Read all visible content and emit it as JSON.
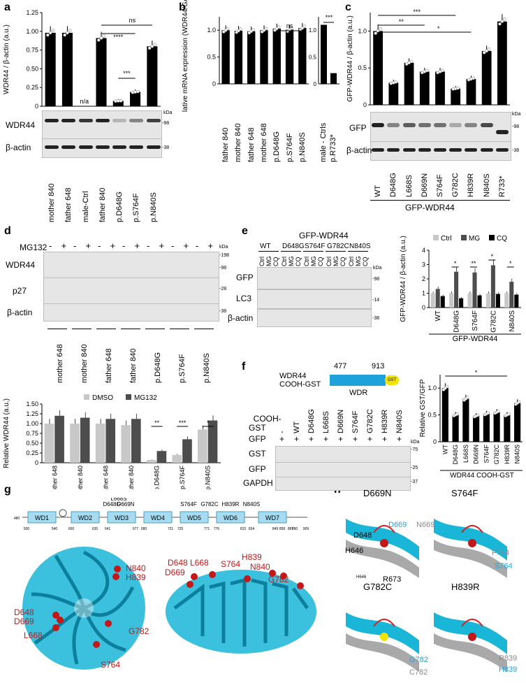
{
  "panel_labels": {
    "a": "a",
    "b": "b",
    "c": "c",
    "d": "d",
    "e": "e",
    "f": "f",
    "g": "g",
    "h": "h"
  },
  "chart_data": [
    {
      "panel": "a",
      "type": "bar",
      "ylabel": "WDR44 / β-actin (a.u.)",
      "ylim": [
        0,
        1.25
      ],
      "yticks": [
        "0",
        "0.25",
        "0.50",
        "0.75",
        "1.00",
        "1.25"
      ],
      "categories": [
        "mother 840",
        "father 648",
        "male-Ctrl",
        "father 840",
        "p.D648G",
        "p.S764F",
        "p.N840S"
      ],
      "values": [
        0.98,
        0.98,
        null,
        0.91,
        0.07,
        0.19,
        0.8
      ],
      "na_label": "n/a",
      "significance": [
        "ns",
        "****",
        "***"
      ]
    },
    {
      "panel": "b",
      "type": "bar",
      "ylabel": "Relative mRNA expression (WDR44/GAPDH)",
      "ylim": [
        0,
        1.25
      ],
      "yticks": [
        "0",
        "0.5",
        "1.0"
      ],
      "categories": [
        "father 840",
        "mother 840",
        "father 648",
        "mother 648",
        "p.D648G",
        "p.S764F",
        "p.N840S"
      ],
      "values": [
        1.0,
        0.99,
        0.98,
        1.0,
        1.03,
        1.01,
        1.04
      ],
      "significance": [
        "ns"
      ],
      "inset": {
        "categories": [
          "male - Ctrls",
          "p.R733*"
        ],
        "values": [
          1.1,
          0.2
        ],
        "ylim": [
          0,
          1.25
        ],
        "yticks": [
          "0",
          "0.5",
          "1.0"
        ],
        "significance": "***"
      }
    },
    {
      "panel": "c",
      "type": "bar",
      "ylabel": "GFP-WDR44 / β-actin (a.u.)",
      "ylim": [
        0,
        1.25
      ],
      "yticks": [
        "0",
        "0.5",
        "1.0"
      ],
      "categories": [
        "WT",
        "D648G",
        "L668S",
        "D669N",
        "S764F",
        "G782C",
        "H839R",
        "N840S",
        "R733*"
      ],
      "values": [
        1.0,
        0.3,
        0.57,
        0.45,
        0.45,
        0.22,
        0.35,
        0.73,
        1.13
      ],
      "significance": [
        "***",
        "**",
        "*"
      ],
      "group_label": "GFP-WDR44"
    },
    {
      "panel": "d",
      "type": "bar",
      "ylabel": "Relative WDR44 (a.u.)",
      "ylim": [
        0,
        1.5
      ],
      "yticks": [
        "0",
        "0.25",
        "0.50",
        "0.75",
        "1.00",
        "1.25",
        "1.50"
      ],
      "categories": [
        "mother 648",
        "mother 840",
        "father 648",
        "father 840",
        "p.D648G",
        "p.S764F",
        "p.N840S"
      ],
      "series": [
        {
          "name": "DMSO",
          "values": [
            1.0,
            1.0,
            1.0,
            0.96,
            0.07,
            0.2,
            0.85
          ],
          "color": "#c8c8c8"
        },
        {
          "name": "MG132",
          "values": [
            1.2,
            1.15,
            1.12,
            1.12,
            0.3,
            0.6,
            1.08
          ],
          "color": "#4d4d4d"
        }
      ],
      "significance": [
        "**",
        "***",
        "*"
      ],
      "legend": "top"
    },
    {
      "panel": "e",
      "type": "bar",
      "ylabel": "GFP-WDR44 / β-actin (a.u.)",
      "ylim": [
        0,
        4
      ],
      "yticks": [
        "0",
        "1",
        "2",
        "3",
        "4"
      ],
      "categories": [
        "WT",
        "D648G",
        "S764F",
        "G782C",
        "N840S"
      ],
      "series": [
        {
          "name": "Ctrl",
          "values": [
            1.0,
            1.0,
            1.0,
            1.0,
            1.0
          ],
          "color": "#c8c8c8"
        },
        {
          "name": "MG",
          "values": [
            1.3,
            2.5,
            2.45,
            2.95,
            1.8
          ],
          "color": "#4d4d4d"
        },
        {
          "name": "CQ",
          "values": [
            0.8,
            0.65,
            0.85,
            0.95,
            0.9
          ],
          "color": "#000000"
        }
      ],
      "significance": [
        "*",
        "**",
        "*",
        "*"
      ],
      "group_label": "GFP-WDR44"
    },
    {
      "panel": "f",
      "type": "bar",
      "ylabel": "Relative GST/GFP",
      "ylim": [
        0,
        1.25
      ],
      "yticks": [
        "0",
        "0.5",
        "1.0"
      ],
      "categories": [
        "WT",
        "D648G",
        "L668S",
        "D669N",
        "S764F",
        "G782C",
        "H839R",
        "N840S"
      ],
      "values": [
        1.0,
        0.5,
        0.8,
        0.48,
        0.52,
        0.55,
        0.5,
        0.72
      ],
      "significance": [
        "*"
      ],
      "group_label": "WDR44 COOH-GST"
    }
  ],
  "blot_a": {
    "rows": [
      "WDR44",
      "β-actin"
    ],
    "kda_label": "kDa",
    "markers": [
      "-98",
      "-38"
    ],
    "lanes": [
      "mother 840",
      "father 648",
      "male-Ctrl",
      "father 840",
      "p.D648G",
      "p.S764F",
      "p.N840S"
    ]
  },
  "blot_b_labels": {
    "lanes": [
      "father 840",
      "mother 840",
      "father 648",
      "mother 648",
      "p.D648G",
      "p.S764F",
      "p.N840S"
    ],
    "inset_lanes": [
      "male - Ctrls",
      "p.R733*"
    ]
  },
  "blot_c": {
    "rows": [
      "GFP",
      "β-actin"
    ],
    "kda_label": "kDa",
    "markers": [
      "-98",
      "-38"
    ],
    "lanes": [
      "WT",
      "D648G",
      "L668S",
      "D669N",
      "S764F",
      "G782C",
      "H839R",
      "N840S",
      "R733*"
    ],
    "group": "GFP-WDR44"
  },
  "blot_d": {
    "treatment_label": "MG132",
    "signs": [
      "-",
      "+",
      "-",
      "+",
      "-",
      "+",
      "-",
      "+",
      "-",
      "+",
      "-",
      "+",
      "-",
      "+"
    ],
    "rows": [
      "WDR44",
      "p27",
      "β-actin"
    ],
    "kda_label": "kDa",
    "markers": [
      "-198",
      "-98",
      "-28",
      "-38"
    ],
    "lanes": [
      "mother 648",
      "mother 840",
      "father 648",
      "father 840",
      "p.D648G",
      "p.S764F",
      "p.N840S"
    ]
  },
  "blot_e": {
    "title": "GFP-WDR44",
    "groups": [
      "WT",
      "D648G",
      "S764F",
      "G782C",
      "N840S"
    ],
    "conditions": [
      "Ctrl",
      "MG",
      "CQ"
    ],
    "rows": [
      "GFP",
      "LC3",
      "β-actin"
    ],
    "kda_label": "kDa",
    "markers": [
      "-98",
      "-14",
      "-38"
    ]
  },
  "blot_f": {
    "construct": {
      "name": "WDR44\nCOOH-GST",
      "start": "477",
      "end": "913",
      "domain": "WDR",
      "tag": "GST"
    },
    "row_labels": [
      "COOH-\nGST",
      "GFP"
    ],
    "lanes": [
      "-",
      "WT",
      "D648G",
      "L668S",
      "D669N",
      "S764F",
      "G782C",
      "H839R",
      "N840S"
    ],
    "gfp_signs": [
      "+",
      "+",
      "+",
      "+",
      "+",
      "+",
      "+",
      "+",
      "+"
    ],
    "rows": [
      "GST",
      "GFP",
      "GAPDH"
    ],
    "kda_label": "kDa",
    "markers": [
      "-75",
      "-25",
      "-37"
    ]
  },
  "panel_g": {
    "domains": [
      "WD1",
      "WD2",
      "WD3",
      "WD4",
      "WD5",
      "WD6",
      "WD7"
    ],
    "positions": [
      "480",
      "500",
      "540",
      "600",
      "635",
      "641",
      "677",
      "680",
      "721",
      "725",
      "771",
      "776",
      "815",
      "834",
      "849",
      "858",
      "887",
      "890",
      "909"
    ],
    "mutation_labels": [
      "L668S",
      "D648G",
      "D669N",
      "S764F",
      "G782C",
      "H839R",
      "N840S"
    ],
    "left_labels": [
      "N840",
      "H839",
      "D648",
      "D669",
      "G782",
      "L668",
      "S764"
    ],
    "right_labels": [
      "D648",
      "L668",
      "D669",
      "S764",
      "H839",
      "N840",
      "G782"
    ]
  },
  "panel_h": {
    "sub": [
      {
        "title": "D669N",
        "labels": [
          "D669",
          "N669",
          "D648",
          "H646",
          "H646",
          "R673"
        ]
      },
      {
        "title": "S764F",
        "labels": [
          "F764",
          "S764"
        ]
      },
      {
        "title": "G782C",
        "labels": [
          "G782",
          "C782"
        ]
      },
      {
        "title": "H839R",
        "labels": [
          "R839",
          "H839"
        ]
      }
    ]
  }
}
